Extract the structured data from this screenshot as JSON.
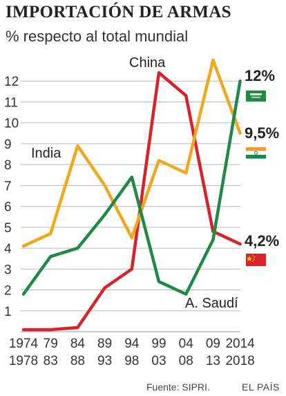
{
  "header": {
    "title": "IMPORTACIÓN DE ARMAS",
    "subtitle": "% respecto al total mundial"
  },
  "footer": {
    "source": "Fuente: SIPRI.",
    "publisher": "EL PAÍS"
  },
  "colors": {
    "india": "#f0a81c",
    "china": "#d8232a",
    "saudi": "#1e8a45",
    "grid": "#b8b8b8"
  },
  "chart_data": {
    "type": "line",
    "title": "IMPORTACIÓN DE ARMAS",
    "subtitle": "% respecto al total mundial",
    "categories": [
      [
        "1974",
        "1978"
      ],
      [
        "79",
        "83"
      ],
      [
        "84",
        "88"
      ],
      [
        "89",
        "93"
      ],
      [
        "94",
        "98"
      ],
      [
        "99",
        "03"
      ],
      [
        "04",
        "08"
      ],
      [
        "09",
        "13"
      ],
      [
        "2014",
        "2018"
      ]
    ],
    "yticks": [
      1,
      2,
      3,
      4,
      5,
      6,
      7,
      8,
      9,
      10,
      11,
      12
    ],
    "ylim": [
      0,
      13
    ],
    "grid": true,
    "series": [
      {
        "name": "India",
        "key": "india",
        "values": [
          4.1,
          4.7,
          8.9,
          7.0,
          4.5,
          8.2,
          7.6,
          13.0,
          9.5
        ],
        "end_label": "9,5%",
        "flag": "india-flag"
      },
      {
        "name": "China",
        "key": "china",
        "values": [
          0.1,
          0.1,
          0.2,
          2.1,
          3.0,
          12.4,
          11.3,
          4.8,
          4.2
        ],
        "end_label": "4,2%",
        "flag": "china-flag"
      },
      {
        "name": "A. Saudí",
        "key": "saudi",
        "values": [
          1.8,
          3.6,
          4.0,
          5.6,
          7.4,
          2.4,
          1.8,
          4.4,
          12.0
        ],
        "end_label": "12%",
        "flag": "saudi-flag"
      }
    ]
  }
}
